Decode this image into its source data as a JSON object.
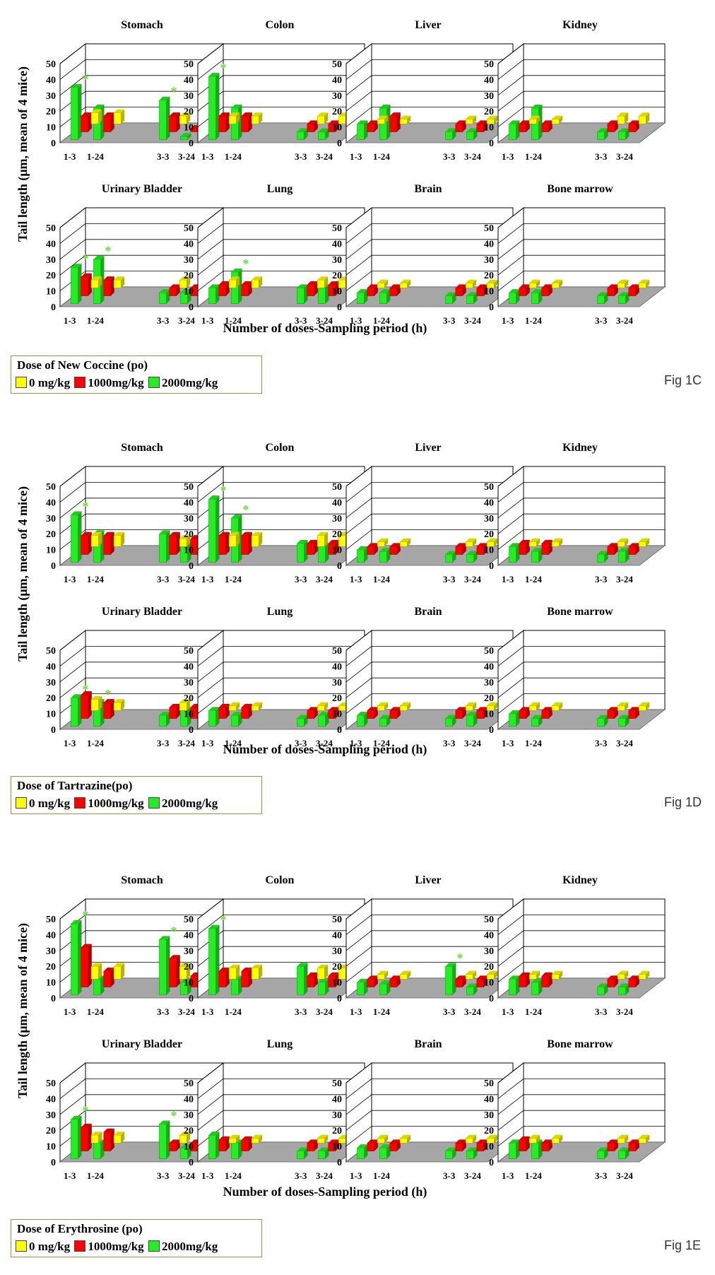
{
  "colors": {
    "dose0": "#ffff00",
    "dose1000": "#ff0000",
    "dose2000": "#22ee22",
    "floor": "#a6a6a6",
    "star": "#66dd33"
  },
  "x_categories": [
    "1-3",
    "1-24",
    "3-3",
    "3-24"
  ],
  "y_ticks": [
    0,
    10,
    20,
    30,
    40,
    50
  ],
  "figures": [
    {
      "id": "fig1c",
      "fig_label": "Fig 1C",
      "ylabel": "Tail length (μm, mean of 4 mice)",
      "xlabel": "Number of doses-Sampling period (h)",
      "legend": {
        "title": "Dose of New Coccine (po)",
        "items": [
          "0 mg/kg",
          "1000mg/kg",
          "2000mg/kg"
        ]
      },
      "chart_data": [
        {
          "type": "bar",
          "title": "Stomach",
          "series": [
            {
              "values": [
                7,
                7,
                5,
                5
              ]
            },
            {
              "values": [
                10,
                10,
                10,
                2
              ]
            },
            {
              "values": [
                33,
                20,
                25,
                2
              ]
            }
          ],
          "stars": [
            0,
            2
          ]
        },
        {
          "type": "bar",
          "title": "Colon",
          "series": [
            {
              "values": [
                5,
                5,
                5,
                5
              ]
            },
            {
              "values": [
                10,
                10,
                5,
                5
              ]
            },
            {
              "values": [
                40,
                20,
                5,
                5
              ]
            }
          ],
          "stars": [
            0
          ]
        },
        {
          "type": "bar",
          "title": "Liver",
          "series": [
            {
              "values": [
                3,
                3,
                3,
                3
              ]
            },
            {
              "values": [
                5,
                10,
                5,
                5
              ]
            },
            {
              "values": [
                10,
                20,
                5,
                5
              ]
            }
          ],
          "stars": []
        },
        {
          "type": "bar",
          "title": "Kidney",
          "series": [
            {
              "values": [
                3,
                3,
                5,
                5
              ]
            },
            {
              "values": [
                5,
                5,
                5,
                5
              ]
            },
            {
              "values": [
                10,
                20,
                5,
                5
              ]
            }
          ],
          "stars": []
        },
        {
          "type": "bar",
          "title": "Urinary Bladder",
          "series": [
            {
              "values": [
                5,
                5,
                5,
                5
              ]
            },
            {
              "values": [
                12,
                10,
                5,
                5
              ]
            },
            {
              "values": [
                23,
                28,
                7,
                7
              ]
            }
          ],
          "stars": [
            0,
            1
          ]
        },
        {
          "type": "bar",
          "title": "Lung",
          "series": [
            {
              "values": [
                5,
                5,
                5,
                5
              ]
            },
            {
              "values": [
                7,
                7,
                7,
                7
              ]
            },
            {
              "values": [
                10,
                20,
                10,
                10
              ]
            }
          ],
          "stars": [
            1
          ]
        },
        {
          "type": "bar",
          "title": "Brain",
          "series": [
            {
              "values": [
                3,
                3,
                3,
                3
              ]
            },
            {
              "values": [
                5,
                5,
                5,
                5
              ]
            },
            {
              "values": [
                7,
                7,
                5,
                5
              ]
            }
          ],
          "stars": []
        },
        {
          "type": "bar",
          "title": "Bone marrow",
          "series": [
            {
              "values": [
                3,
                3,
                3,
                3
              ]
            },
            {
              "values": [
                5,
                5,
                5,
                5
              ]
            },
            {
              "values": [
                7,
                7,
                5,
                5
              ]
            }
          ],
          "stars": []
        }
      ]
    },
    {
      "id": "fig1d",
      "fig_label": "Fig 1D",
      "ylabel": "Tail length (μm, mean of 4 mice)",
      "xlabel": "Number of doses-Sampling period (h)",
      "legend": {
        "title": "Dose of Tartrazine(po)",
        "items": [
          "0 mg/kg",
          "1000mg/kg",
          "2000mg/kg"
        ]
      },
      "chart_data": [
        {
          "type": "bar",
          "title": "Stomach",
          "series": [
            {
              "values": [
                7,
                7,
                5,
                5
              ]
            },
            {
              "values": [
                12,
                12,
                12,
                10
              ]
            },
            {
              "values": [
                30,
                18,
                18,
                12
              ]
            }
          ],
          "stars": [
            0
          ]
        },
        {
          "type": "bar",
          "title": "Colon",
          "series": [
            {
              "values": [
                7,
                7,
                7,
                7
              ]
            },
            {
              "values": [
                12,
                12,
                7,
                7
              ]
            },
            {
              "values": [
                40,
                28,
                12,
                10
              ]
            }
          ],
          "stars": [
            0,
            1
          ]
        },
        {
          "type": "bar",
          "title": "Liver",
          "series": [
            {
              "values": [
                3,
                3,
                3,
                3
              ]
            },
            {
              "values": [
                5,
                5,
                5,
                5
              ]
            },
            {
              "values": [
                8,
                7,
                5,
                5
              ]
            }
          ],
          "stars": []
        },
        {
          "type": "bar",
          "title": "Kidney",
          "series": [
            {
              "values": [
                3,
                3,
                3,
                3
              ]
            },
            {
              "values": [
                7,
                7,
                5,
                5
              ]
            },
            {
              "values": [
                10,
                7,
                5,
                7
              ]
            }
          ],
          "stars": []
        },
        {
          "type": "bar",
          "title": "Urinary Bladder",
          "series": [
            {
              "values": [
                7,
                5,
                5,
                5
              ]
            },
            {
              "values": [
                15,
                10,
                7,
                7
              ]
            },
            {
              "values": [
                18,
                15,
                7,
                10
              ]
            }
          ],
          "stars": [
            0,
            1
          ]
        },
        {
          "type": "bar",
          "title": "Lung",
          "series": [
            {
              "values": [
                3,
                3,
                3,
                3
              ]
            },
            {
              "values": [
                7,
                7,
                5,
                5
              ]
            },
            {
              "values": [
                10,
                7,
                5,
                7
              ]
            }
          ],
          "stars": []
        },
        {
          "type": "bar",
          "title": "Brain",
          "series": [
            {
              "values": [
                3,
                3,
                3,
                3
              ]
            },
            {
              "values": [
                5,
                5,
                5,
                5
              ]
            },
            {
              "values": [
                7,
                5,
                5,
                7
              ]
            }
          ],
          "stars": []
        },
        {
          "type": "bar",
          "title": "Bone marrow",
          "series": [
            {
              "values": [
                3,
                3,
                3,
                3
              ]
            },
            {
              "values": [
                5,
                5,
                5,
                5
              ]
            },
            {
              "values": [
                8,
                5,
                5,
                5
              ]
            }
          ],
          "stars": []
        }
      ]
    },
    {
      "id": "fig1e",
      "fig_label": "Fig 1E",
      "ylabel": "Tail length (μm, mean of 4 mice)",
      "xlabel": "Number of doses-Sampling period (h)",
      "legend": {
        "title": "Dose of Erythrosine (po)",
        "items": [
          "0 mg/kg",
          "1000mg/kg",
          "2000mg/kg"
        ]
      },
      "chart_data": [
        {
          "type": "bar",
          "title": "Stomach",
          "series": [
            {
              "values": [
                8,
                8,
                8,
                7
              ]
            },
            {
              "values": [
                25,
                10,
                18,
                7
              ]
            },
            {
              "values": [
                45,
                10,
                35,
                8
              ]
            }
          ],
          "stars": [
            0,
            2
          ]
        },
        {
          "type": "bar",
          "title": "Colon",
          "series": [
            {
              "values": [
                7,
                7,
                7,
                7
              ]
            },
            {
              "values": [
                10,
                10,
                7,
                7
              ]
            },
            {
              "values": [
                42,
                10,
                18,
                8
              ]
            }
          ],
          "stars": [
            0
          ]
        },
        {
          "type": "bar",
          "title": "Liver",
          "series": [
            {
              "values": [
                3,
                3,
                3,
                3
              ]
            },
            {
              "values": [
                5,
                5,
                5,
                5
              ]
            },
            {
              "values": [
                8,
                7,
                18,
                5
              ]
            }
          ],
          "stars": [
            2
          ]
        },
        {
          "type": "bar",
          "title": "Kidney",
          "series": [
            {
              "values": [
                3,
                3,
                3,
                3
              ]
            },
            {
              "values": [
                7,
                7,
                5,
                5
              ]
            },
            {
              "values": [
                10,
                8,
                5,
                5
              ]
            }
          ],
          "stars": []
        },
        {
          "type": "bar",
          "title": "Urinary Bladder",
          "series": [
            {
              "values": [
                5,
                5,
                5,
                5
              ]
            },
            {
              "values": [
                15,
                12,
                5,
                5
              ]
            },
            {
              "values": [
                25,
                10,
                22,
                7
              ]
            }
          ],
          "stars": [
            0,
            2
          ]
        },
        {
          "type": "bar",
          "title": "Lung",
          "series": [
            {
              "values": [
                3,
                3,
                3,
                3
              ]
            },
            {
              "values": [
                7,
                7,
                5,
                5
              ]
            },
            {
              "values": [
                15,
                10,
                5,
                5
              ]
            }
          ],
          "stars": []
        },
        {
          "type": "bar",
          "title": "Brain",
          "series": [
            {
              "values": [
                3,
                3,
                3,
                3
              ]
            },
            {
              "values": [
                5,
                5,
                5,
                5
              ]
            },
            {
              "values": [
                7,
                7,
                5,
                5
              ]
            }
          ],
          "stars": []
        },
        {
          "type": "bar",
          "title": "Bone marrow",
          "series": [
            {
              "values": [
                3,
                3,
                3,
                3
              ]
            },
            {
              "values": [
                7,
                5,
                5,
                5
              ]
            },
            {
              "values": [
                10,
                10,
                5,
                5
              ]
            }
          ],
          "stars": []
        }
      ]
    }
  ]
}
